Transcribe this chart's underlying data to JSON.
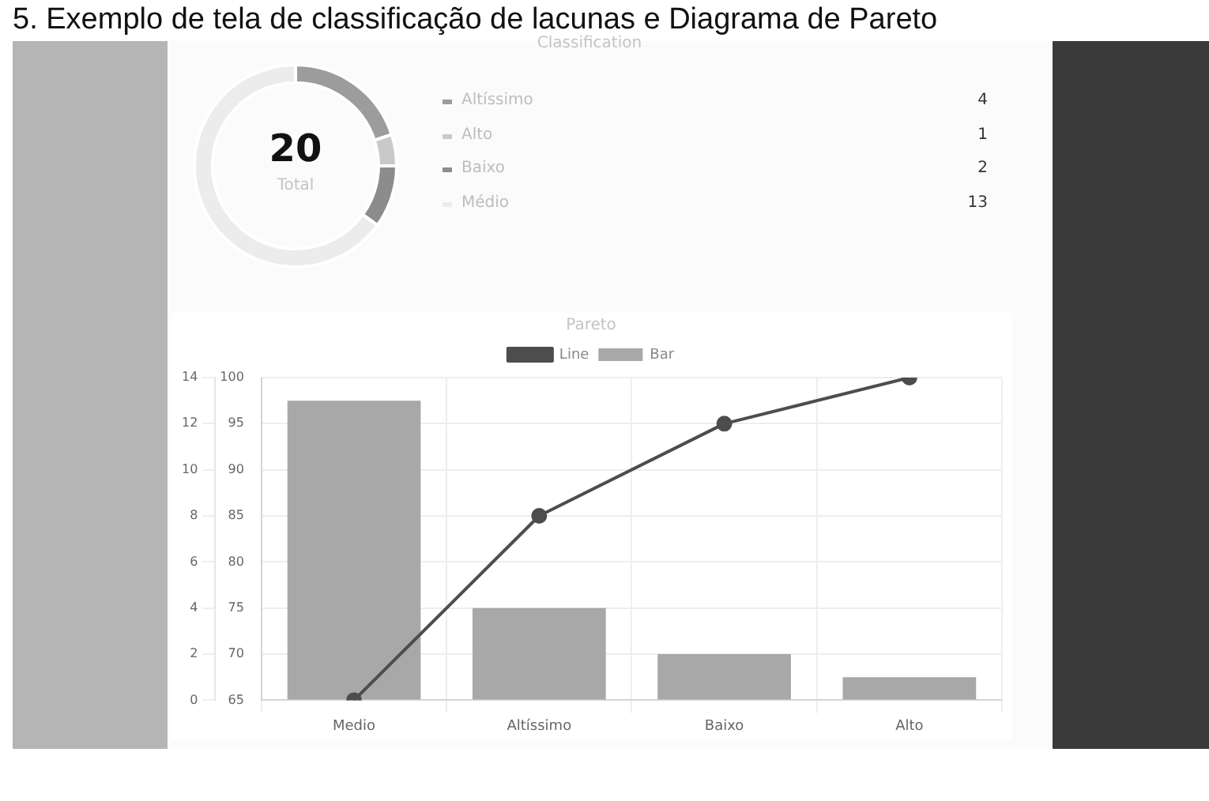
{
  "chart_data": [
    {
      "type": "donut",
      "title": "Classification",
      "categories": [
        "Altíssimo",
        "Alto",
        "Baixo",
        "Médio"
      ],
      "values": [
        4,
        1,
        2,
        13
      ],
      "colors": [
        "#9c9c9c",
        "#c9c9c9",
        "#8c8c8c",
        "#ececec"
      ],
      "data_labels": true,
      "legend": "right",
      "annotations": [
        "5. Exemplo de tela de classificação de lacunas e Diagrama de Pareto",
        "20",
        "Total"
      ]
    },
    {
      "type": "bar",
      "title": "Pareto",
      "categories": [
        "Medio",
        "Altíssimo",
        "Baixo",
        "Alto"
      ],
      "series": [
        {
          "name": "Line",
          "type": "line",
          "color": "#4d4d4d",
          "axis": "y2",
          "values": [
            65,
            85,
            95,
            100
          ]
        },
        {
          "name": "Bar",
          "type": "bar",
          "color": "#a8a8a8",
          "values": [
            13,
            4,
            2,
            1
          ]
        }
      ],
      "ylim": [
        0,
        14
      ],
      "yticks": [
        0,
        2,
        4,
        6,
        8,
        10,
        12,
        14
      ],
      "y2lim": [
        65,
        100
      ],
      "y2ticks": [
        65,
        70,
        75,
        80,
        85,
        90,
        95,
        100
      ],
      "grid": true,
      "legend": "top",
      "marker": "circle",
      "line_style": "solid"
    }
  ]
}
